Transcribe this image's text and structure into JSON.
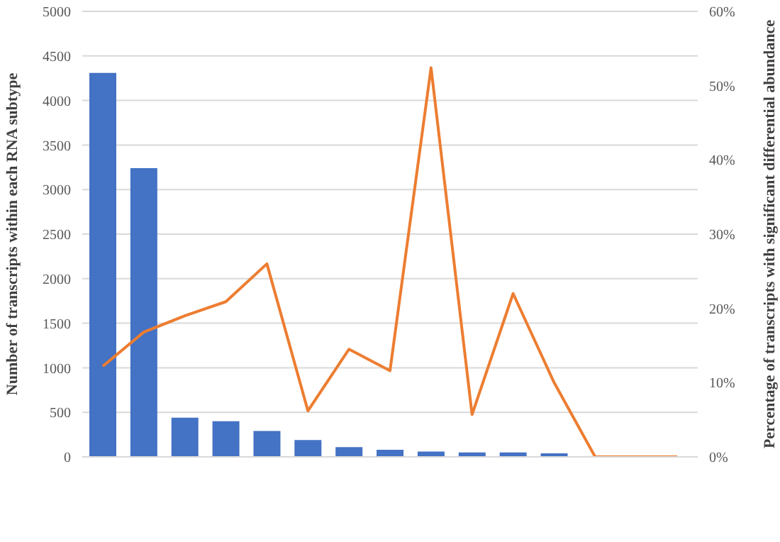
{
  "chart_data": {
    "type": "bar",
    "ylabel": "Number of transcripts within each RNA subtype",
    "y2label": "Percentage of transcripts with significant differential abundance",
    "categories": [
      null,
      null,
      null,
      null,
      null,
      null,
      null,
      null,
      null,
      null,
      null,
      null,
      null,
      null,
      null
    ],
    "series": [
      {
        "color": "#4472c4",
        "values": [
          4310,
          3240,
          440,
          400,
          290,
          190,
          110,
          80,
          60,
          50,
          50,
          40,
          0,
          0,
          0
        ]
      },
      {
        "type": "line",
        "axis": "y2",
        "color": "#ed7d31",
        "values": [
          12.2,
          16.8,
          19,
          20.9,
          26,
          6.2,
          14.5,
          11.6,
          52.4,
          5.7,
          22,
          10,
          0,
          0,
          0
        ]
      }
    ],
    "ylim": [
      0,
      5000
    ],
    "yticks": [
      0,
      500,
      1000,
      1500,
      2000,
      2500,
      3000,
      3500,
      4000,
      4500,
      5000
    ],
    "y2lim": [
      0,
      60
    ],
    "y2ticks": [
      {
        "value": 0,
        "label": "0%"
      },
      {
        "value": 10,
        "label": "10%"
      },
      {
        "value": 20,
        "label": "20%"
      },
      {
        "value": 30,
        "label": "30%"
      },
      {
        "value": 40,
        "label": "40%"
      },
      {
        "value": 50,
        "label": "50%"
      },
      {
        "value": 60,
        "label": "60%"
      }
    ],
    "grid": "y",
    "marker": "none",
    "line_style": "solid"
  }
}
